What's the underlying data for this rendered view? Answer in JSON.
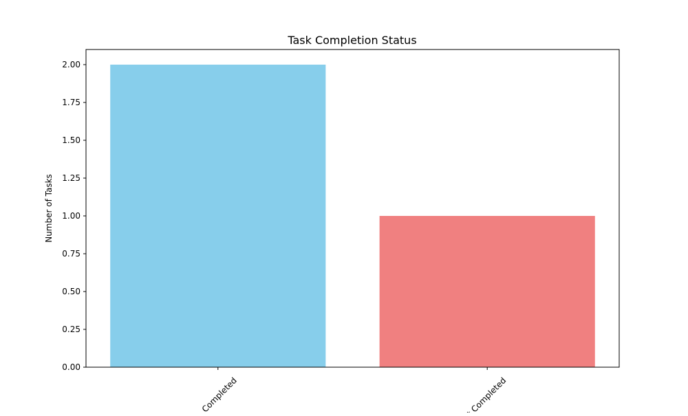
{
  "chart_data": {
    "type": "bar",
    "title": "Task Completion Status",
    "xlabel": "",
    "ylabel": "Number of Tasks",
    "categories": [
      "Completed",
      "Not Completed"
    ],
    "values": [
      2,
      1
    ],
    "colors": [
      "#87ceeb",
      "#f08080"
    ],
    "ylim": [
      0,
      2.1
    ],
    "yticks": [
      "0.00",
      "0.25",
      "0.50",
      "0.75",
      "1.00",
      "1.25",
      "1.50",
      "1.75",
      "2.00"
    ],
    "grid": false,
    "legend": "none"
  }
}
